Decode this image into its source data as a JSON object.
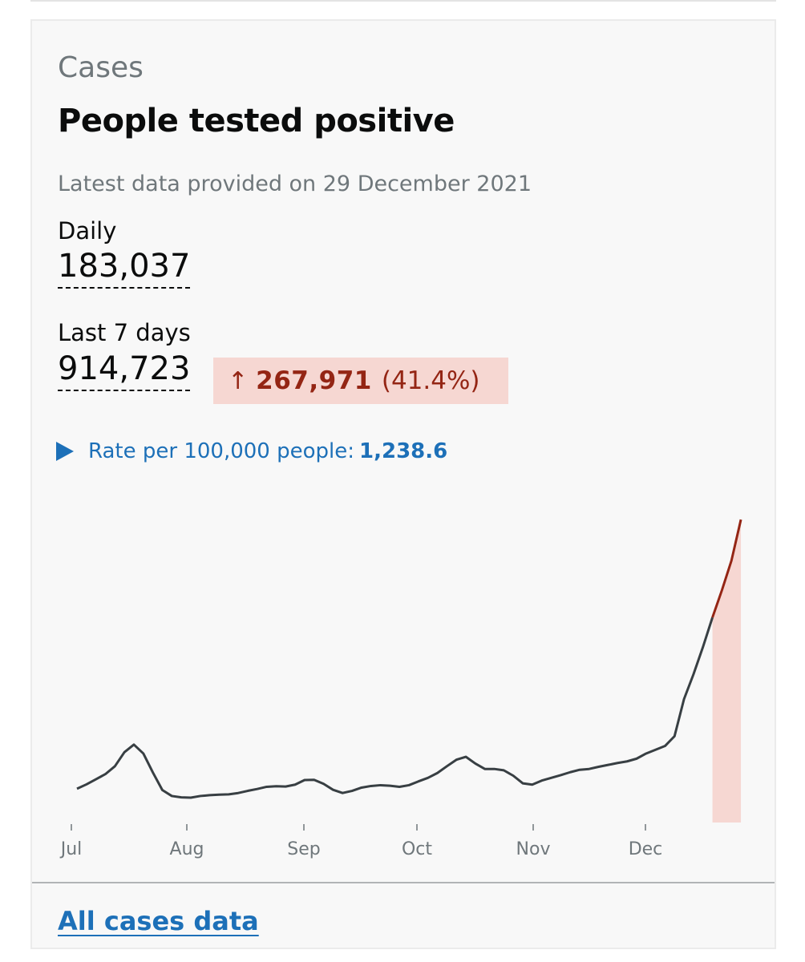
{
  "card": {
    "caption": "Cases",
    "title": "People tested positive",
    "latest": "Latest data provided on 29 December 2021",
    "daily_label": "Daily",
    "daily_value": "183,037",
    "week_label": "Last 7 days",
    "week_value": "914,723",
    "change_arrow": "↑",
    "change_value": "267,971",
    "change_percent": "(41.4%)",
    "rate_label": "Rate per 100,000 people:",
    "rate_value": "1,238.6",
    "link": "All cases data"
  },
  "colors": {
    "line": "#383f43",
    "highlight_line": "#942514",
    "highlight_fill": "#f6d7d2",
    "link": "#1d70b8"
  },
  "chart_data": {
    "type": "line",
    "x_labels": [
      "Jul",
      "Aug",
      "Sep",
      "Oct",
      "Nov",
      "Dec"
    ],
    "series": [
      {
        "values": [
          [
            0,
            12500
          ],
          [
            3,
            14100
          ],
          [
            6,
            16000
          ],
          [
            9,
            17900
          ],
          [
            12,
            20800
          ],
          [
            15,
            26000
          ],
          [
            18,
            28800
          ],
          [
            21,
            25500
          ],
          [
            24,
            18500
          ],
          [
            27,
            12000
          ],
          [
            30,
            9800
          ],
          [
            33,
            9300
          ],
          [
            36,
            9200
          ],
          [
            39,
            9800
          ],
          [
            42,
            10100
          ],
          [
            45,
            10300
          ],
          [
            48,
            10400
          ],
          [
            51,
            10900
          ],
          [
            54,
            11700
          ],
          [
            57,
            12400
          ],
          [
            60,
            13200
          ],
          [
            63,
            13400
          ],
          [
            66,
            13300
          ],
          [
            69,
            14000
          ],
          [
            72,
            15700
          ],
          [
            75,
            15800
          ],
          [
            78,
            14300
          ],
          [
            81,
            12100
          ],
          [
            84,
            10900
          ],
          [
            87,
            11700
          ],
          [
            90,
            12900
          ],
          [
            93,
            13500
          ],
          [
            96,
            13800
          ],
          [
            99,
            13600
          ],
          [
            102,
            13200
          ],
          [
            105,
            13800
          ],
          [
            108,
            15200
          ],
          [
            111,
            16500
          ],
          [
            114,
            18300
          ],
          [
            117,
            20800
          ],
          [
            120,
            23200
          ],
          [
            123,
            24300
          ],
          [
            126,
            21800
          ],
          [
            129,
            19800
          ],
          [
            132,
            19800
          ],
          [
            135,
            19300
          ],
          [
            138,
            17300
          ],
          [
            141,
            14500
          ],
          [
            144,
            14000
          ],
          [
            147,
            15500
          ],
          [
            150,
            16500
          ],
          [
            153,
            17500
          ],
          [
            156,
            18600
          ],
          [
            159,
            19500
          ],
          [
            162,
            19800
          ],
          [
            165,
            20600
          ],
          [
            168,
            21300
          ],
          [
            171,
            22000
          ],
          [
            174,
            22600
          ],
          [
            177,
            23600
          ],
          [
            180,
            25500
          ],
          [
            183,
            26900
          ],
          [
            186,
            28300
          ],
          [
            189,
            31900
          ],
          [
            192,
            45600
          ],
          [
            195,
            54800
          ],
          [
            198,
            64900
          ],
          [
            201,
            75800
          ],
          [
            204,
            85900
          ],
          [
            207,
            96800
          ],
          [
            210,
            112000
          ]
        ]
      }
    ],
    "highlight_last_days": 7,
    "xlim": [
      0,
      211
    ],
    "ylim": [
      0,
      115000
    ]
  }
}
